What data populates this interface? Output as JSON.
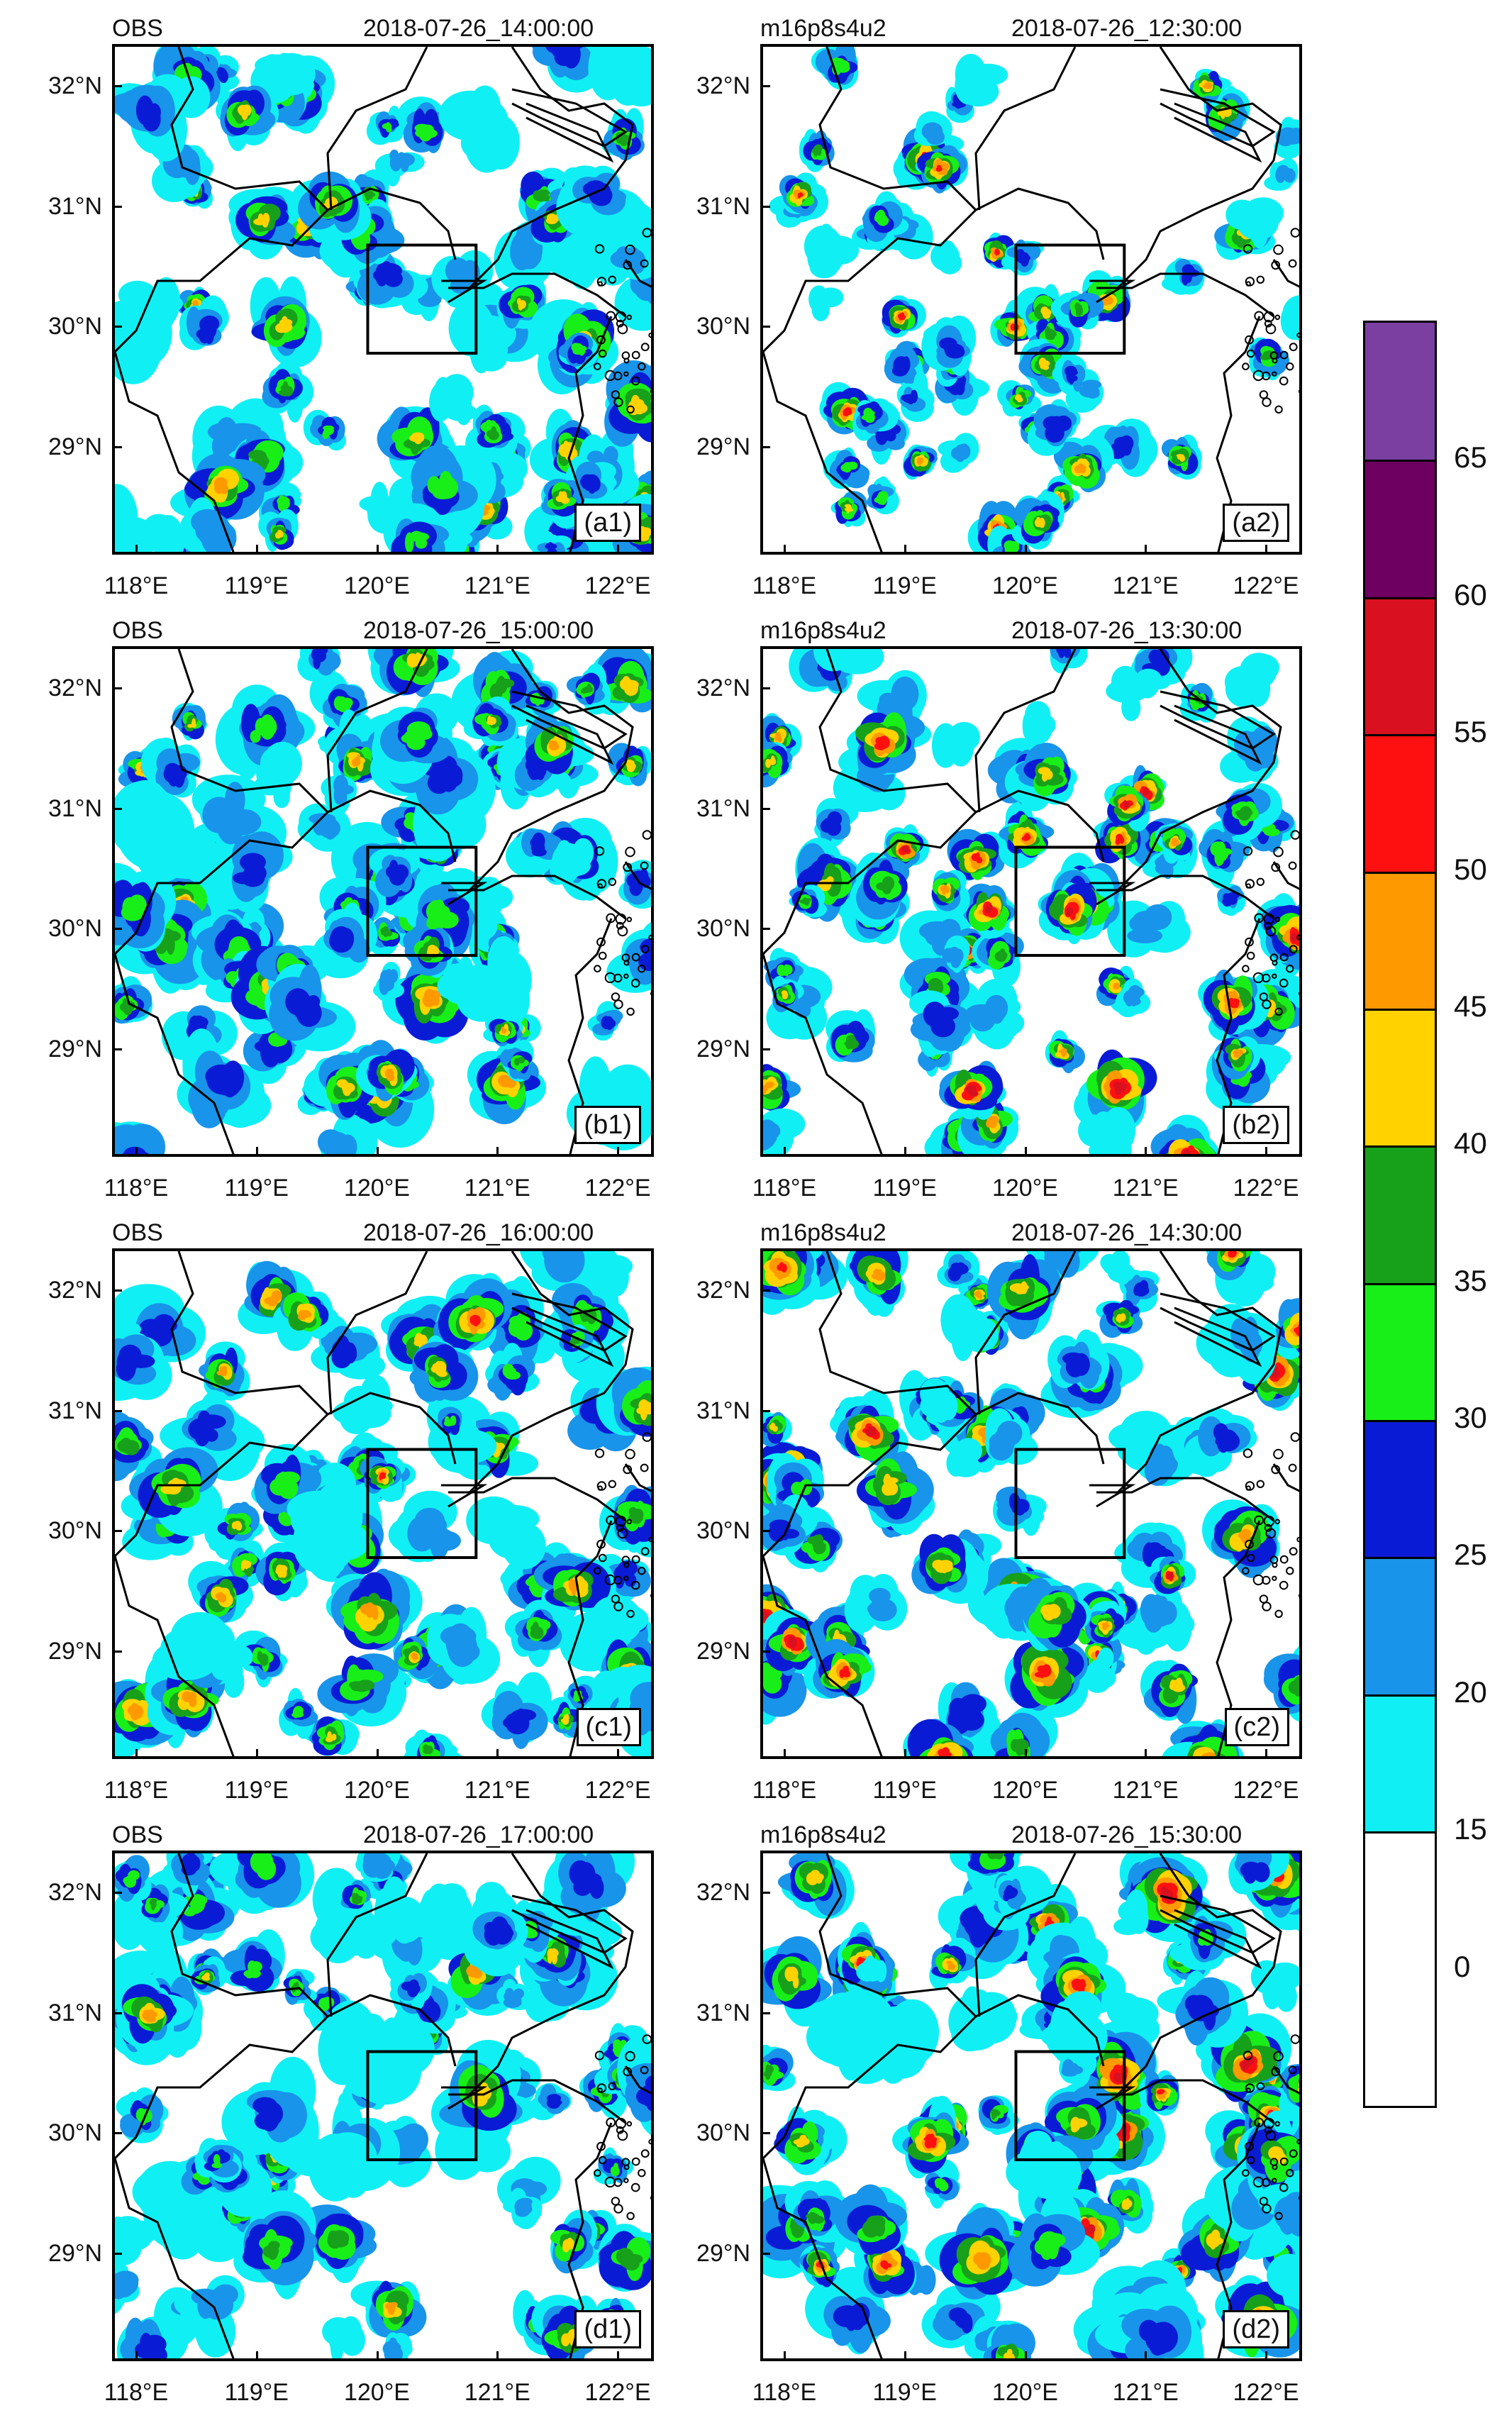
{
  "panels": [
    {
      "id": "a1",
      "label": "(a1)",
      "source": "OBS",
      "time": "2018-07-26_14:00:00",
      "col": 0,
      "row": 0,
      "coverage": 0.55,
      "intensity": 0.45
    },
    {
      "id": "a2",
      "label": "(a2)",
      "source": "m16p8s4u2",
      "time": "2018-07-26_12:30:00",
      "col": 1,
      "row": 0,
      "coverage": 0.25,
      "intensity": 0.55
    },
    {
      "id": "b1",
      "label": "(b1)",
      "source": "OBS",
      "time": "2018-07-26_15:00:00",
      "col": 0,
      "row": 1,
      "coverage": 0.62,
      "intensity": 0.5
    },
    {
      "id": "b2",
      "label": "(b2)",
      "source": "m16p8s4u2",
      "time": "2018-07-26_13:30:00",
      "col": 1,
      "row": 1,
      "coverage": 0.45,
      "intensity": 0.6
    },
    {
      "id": "c1",
      "label": "(c1)",
      "source": "OBS",
      "time": "2018-07-26_16:00:00",
      "col": 0,
      "row": 2,
      "coverage": 0.58,
      "intensity": 0.5
    },
    {
      "id": "c2",
      "label": "(c2)",
      "source": "m16p8s4u2",
      "time": "2018-07-26_14:30:00",
      "col": 1,
      "row": 2,
      "coverage": 0.52,
      "intensity": 0.65
    },
    {
      "id": "d1",
      "label": "(d1)",
      "source": "OBS",
      "time": "2018-07-26_17:00:00",
      "col": 0,
      "row": 3,
      "coverage": 0.6,
      "intensity": 0.45
    },
    {
      "id": "d2",
      "label": "(d2)",
      "source": "m16p8s4u2",
      "time": "2018-07-26_15:30:00",
      "col": 1,
      "row": 3,
      "coverage": 0.62,
      "intensity": 0.65
    }
  ],
  "axes": {
    "x_ticks": [
      "118°E",
      "119°E",
      "120°E",
      "121°E",
      "122°E"
    ],
    "y_ticks": [
      "32°N",
      "31°N",
      "30°N",
      "29°N"
    ],
    "x_values": [
      118,
      119,
      120,
      121,
      122
    ],
    "y_values": [
      32,
      31,
      30,
      29
    ],
    "lon_range": [
      117.8,
      122.3
    ],
    "lat_range": [
      28.1,
      32.35
    ],
    "box_lon": [
      119.9,
      120.8
    ],
    "box_lat": [
      29.8,
      30.7
    ]
  },
  "colorbar": {
    "labels": [
      "65",
      "60",
      "55",
      "50",
      "45",
      "40",
      "35",
      "30",
      "25",
      "20",
      "15",
      "0"
    ],
    "colors": [
      "#7a3fa0",
      "#6d0060",
      "#d91020",
      "#ff1010",
      "#ff9900",
      "#ffd200",
      "#17a01a",
      "#18ef18",
      "#0a1bd6",
      "#1894ea",
      "#10f0f4",
      "#ffffff",
      "#ffffff"
    ]
  }
}
